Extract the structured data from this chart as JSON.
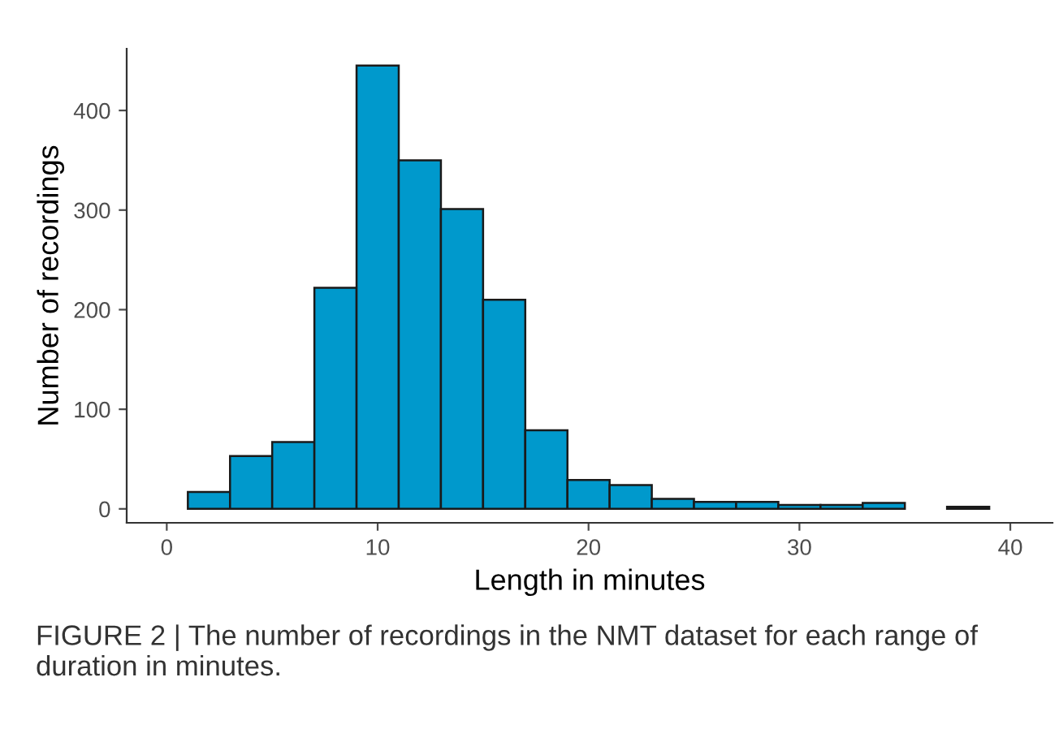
{
  "chart_data": {
    "type": "histogram",
    "xlabel": "Length in minutes",
    "ylabel": "Number of recordings",
    "bins": [
      1,
      3,
      5,
      7,
      9,
      11,
      13,
      15,
      17,
      19,
      21,
      23,
      25,
      27,
      29,
      31,
      33,
      35,
      37,
      39
    ],
    "values": [
      17,
      53,
      67,
      222,
      445,
      350,
      301,
      210,
      79,
      29,
      24,
      10,
      7,
      7,
      4,
      4,
      6,
      0,
      2
    ],
    "color": "#0099cc",
    "xlim": [
      -1.9,
      42
    ],
    "ylim": [
      -14,
      462
    ],
    "xticks": [
      0,
      10,
      20,
      30,
      40
    ],
    "yticks": [
      0,
      100,
      200,
      300,
      400
    ],
    "grid": false,
    "annotations": [
      "FIGURE 2 | The number of recordings in the NMT dataset for each range of duration in minutes."
    ]
  }
}
